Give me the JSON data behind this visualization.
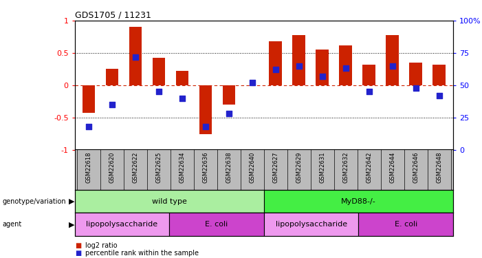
{
  "title": "GDS1705 / 11231",
  "samples": [
    "GSM22618",
    "GSM22620",
    "GSM22622",
    "GSM22625",
    "GSM22634",
    "GSM22636",
    "GSM22638",
    "GSM22640",
    "GSM22627",
    "GSM22629",
    "GSM22631",
    "GSM22632",
    "GSM22642",
    "GSM22644",
    "GSM22646",
    "GSM22648"
  ],
  "log2_ratio": [
    -0.43,
    0.25,
    0.9,
    0.42,
    0.22,
    -0.76,
    -0.3,
    0.0,
    0.68,
    0.78,
    0.55,
    0.62,
    0.32,
    0.78,
    0.35,
    0.32
  ],
  "percentile": [
    18,
    35,
    72,
    45,
    40,
    18,
    28,
    52,
    62,
    65,
    57,
    63,
    45,
    65,
    48,
    42
  ],
  "ylim": [
    -1,
    1
  ],
  "yticks_left": [
    -1,
    -0.5,
    0,
    0.5,
    1
  ],
  "yticks_right": [
    0,
    25,
    50,
    75,
    100
  ],
  "hlines": [
    -0.5,
    0,
    0.5
  ],
  "bar_color": "#CC2200",
  "dot_color": "#2222CC",
  "zero_line_color": "#CC2200",
  "genotype_groups": [
    {
      "label": "wild type",
      "start": 0,
      "end": 8,
      "color": "#AAEEA0"
    },
    {
      "label": "MyD88-/-",
      "start": 8,
      "end": 16,
      "color": "#44EE44"
    }
  ],
  "agent_groups": [
    {
      "label": "lipopolysaccharide",
      "start": 0,
      "end": 4,
      "color": "#EE99EE"
    },
    {
      "label": "E. coli",
      "start": 4,
      "end": 8,
      "color": "#CC44CC"
    },
    {
      "label": "lipopolysaccharide",
      "start": 8,
      "end": 12,
      "color": "#EE99EE"
    },
    {
      "label": "E. coli",
      "start": 12,
      "end": 16,
      "color": "#CC44CC"
    }
  ],
  "legend_items": [
    {
      "label": "log2 ratio",
      "color": "#CC2200"
    },
    {
      "label": "percentile rank within the sample",
      "color": "#2222CC"
    }
  ],
  "bar_width": 0.55,
  "dot_size": 35,
  "label_area_color": "#BBBBBB"
}
